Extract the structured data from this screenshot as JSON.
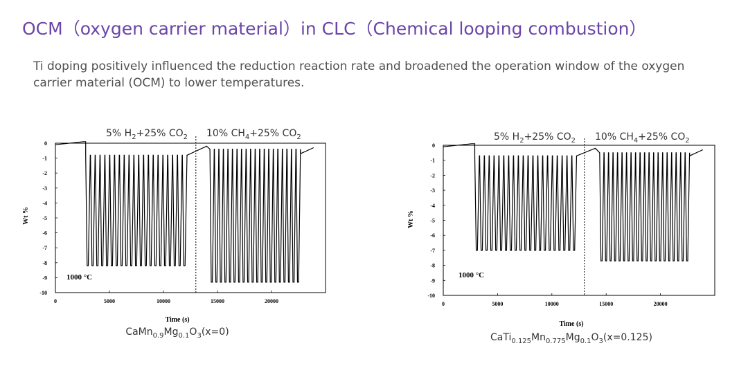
{
  "title": "OCM（oxygen carrier material）in CLC（Chemical looping combustion）",
  "description": "Ti doping positively influenced the reduction reaction rate and broadened the operation window of the oxygen carrier material (OCM) to lower temperatures.",
  "chart_data": [
    {
      "type": "line",
      "xlabel": "Time (s)",
      "ylabel": "Wt %",
      "xlim": [
        0,
        25000
      ],
      "ylim": [
        -10,
        0
      ],
      "xticks": [
        "0",
        "5000",
        "10000",
        "15000",
        "20000"
      ],
      "yticks": [
        "0",
        "-1",
        "-2",
        "-3",
        "-4",
        "-5",
        "-6",
        "-7",
        "-8",
        "-9",
        "-10"
      ],
      "annotation": "1000 °C",
      "phase_labels": [
        {
          "main": "5% H",
          "sub1": "2",
          "mid": "+25% CO",
          "sub2": "2"
        },
        {
          "main": "10% CH",
          "sub1": "4",
          "mid": "+25% CO",
          "sub2": "2"
        }
      ],
      "phase_boundary_s": 13000,
      "caption": {
        "p1": "CaMn",
        "s1": "0.9",
        "p2": "Mg",
        "s2": "0.1",
        "p3": "O",
        "s3": "3",
        "p4": "(x=0)"
      },
      "series": [
        {
          "name": "CaMn0.9Mg0.1O3",
          "initial_plateau": {
            "x": [
              0,
              2600
            ],
            "y": [
              -0.1,
              0.1
            ]
          },
          "phase1": {
            "start_s": 2800,
            "end_s": 12200,
            "cycles": 21,
            "min_wt": -8.2,
            "max_wt": -0.8
          },
          "transition": {
            "x": [
              12200,
              14000
            ],
            "y": [
              -0.8,
              -0.2
            ]
          },
          "phase2": {
            "start_s": 14300,
            "end_s": 22700,
            "cycles": 20,
            "min_wt": -9.3,
            "max_wt": -0.4
          },
          "final": {
            "x": [
              22700,
              23900
            ],
            "y": [
              -0.7,
              -0.3
            ]
          }
        }
      ]
    },
    {
      "type": "line",
      "xlabel": "Time (s)",
      "ylabel": "Wt %",
      "xlim": [
        0,
        25000
      ],
      "ylim": [
        -10,
        0
      ],
      "xticks": [
        "0",
        "5000",
        "10000",
        "15000",
        "20000"
      ],
      "yticks": [
        "0",
        "-1",
        "-2",
        "-3",
        "-4",
        "-5",
        "-6",
        "-7",
        "-8",
        "-9",
        "-10"
      ],
      "annotation": "1000 °C",
      "phase_labels": [
        {
          "main": "5% H",
          "sub1": "2",
          "mid": "+25% CO",
          "sub2": "2"
        },
        {
          "main": "10% CH",
          "sub1": "4",
          "mid": "+25% CO",
          "sub2": "2"
        }
      ],
      "phase_boundary_s": 13000,
      "caption": {
        "p1": "CaTi",
        "s1": "0.125",
        "p2": "Mn",
        "s2": "0.775",
        "p3": "Mg",
        "s3": "0.1",
        "p4": "O",
        "s4": "3",
        "p5": "(x=0.125)"
      },
      "series": [
        {
          "name": "CaTi0.125Mn0.775Mg0.1O3",
          "initial_plateau": {
            "x": [
              0,
              2600
            ],
            "y": [
              -0.1,
              0.1
            ]
          },
          "phase1": {
            "start_s": 2900,
            "end_s": 12300,
            "cycles": 21,
            "min_wt": -7.0,
            "max_wt": -0.7
          },
          "transition": {
            "x": [
              12300,
              14000
            ],
            "y": [
              -0.7,
              -0.2
            ]
          },
          "phase2": {
            "start_s": 14400,
            "end_s": 22700,
            "cycles": 20,
            "min_wt": -7.7,
            "max_wt": -0.5
          },
          "final": {
            "x": [
              22700,
              23900
            ],
            "y": [
              -0.7,
              -0.3
            ]
          }
        }
      ]
    }
  ]
}
